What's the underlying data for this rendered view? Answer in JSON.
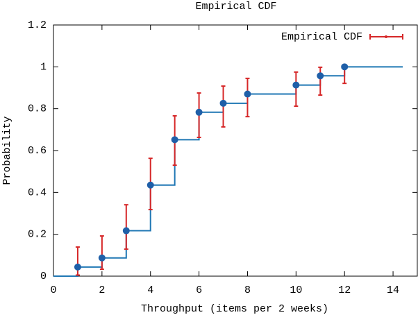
{
  "chart_data": {
    "type": "errorbar",
    "title": "Empirical CDF",
    "x_label": "Throughput (items per 2 weeks)",
    "y_label": "Probability",
    "xlim": [
      0,
      15
    ],
    "ylim": [
      0,
      1.2
    ],
    "xticks": [
      0,
      2,
      4,
      6,
      8,
      10,
      12,
      14
    ],
    "yticks": [
      0,
      0.2,
      0.4,
      0.6,
      0.8,
      1,
      1.2
    ],
    "legend_position": "upper right",
    "series": [
      {
        "name": "Empirical CDF",
        "color": "#d62728",
        "marker_color": "#1f5fa8",
        "x": [
          1,
          2,
          3,
          4,
          5,
          6,
          7,
          8,
          10,
          11,
          12
        ],
        "values": [
          0.0435,
          0.087,
          0.217,
          0.435,
          0.652,
          0.783,
          0.826,
          0.87,
          0.913,
          0.957,
          1
        ],
        "lower": [
          0.005,
          0.033,
          0.129,
          0.318,
          0.53,
          0.663,
          0.713,
          0.762,
          0.812,
          0.865,
          0.921
        ],
        "upper": [
          0.139,
          0.192,
          0.341,
          0.563,
          0.766,
          0.875,
          0.908,
          0.945,
          0.975,
          0.998,
          1
        ]
      }
    ],
    "step_line": {
      "color": "#1f77b4",
      "x": [
        0,
        1,
        2,
        3,
        4,
        5,
        6,
        7,
        8,
        10,
        11,
        12,
        14.4
      ],
      "values": [
        0,
        0.0435,
        0.087,
        0.217,
        0.435,
        0.652,
        0.783,
        0.826,
        0.87,
        0.913,
        0.957,
        1,
        1
      ]
    }
  }
}
